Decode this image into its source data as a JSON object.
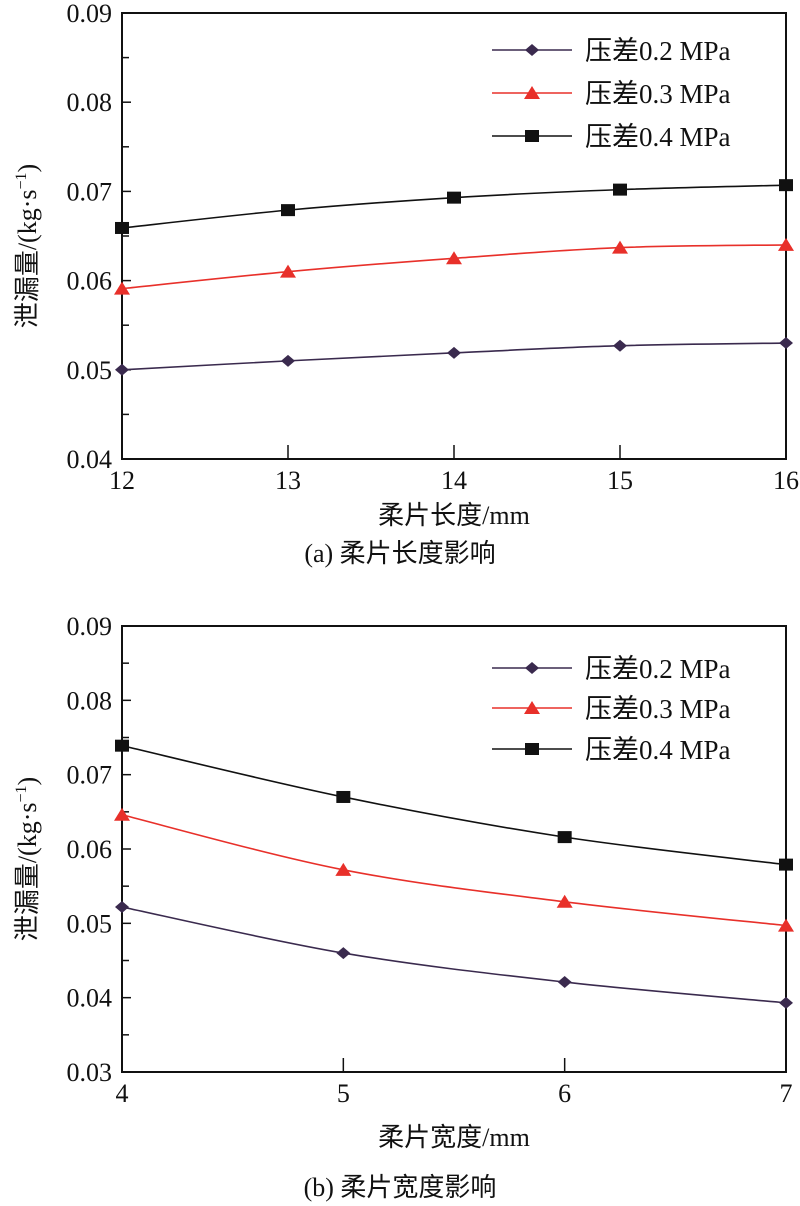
{
  "chart_data": [
    {
      "type": "line",
      "caption": "(a) 柔片长度影响",
      "xlabel": "柔片长度/mm",
      "ylabel": "泄漏量/(kg·s",
      "ylabel_sup": "−1",
      "ylabel_close": ")",
      "x": [
        12,
        13,
        14,
        15,
        16
      ],
      "xlim": [
        12,
        16
      ],
      "ylim": [
        0.04,
        0.09
      ],
      "xticks": [
        "12",
        "13",
        "14",
        "15",
        "16"
      ],
      "yticks": [
        "0.04",
        "0.05",
        "0.06",
        "0.07",
        "0.08",
        "0.09"
      ],
      "legend_position": "top-right",
      "grid": false,
      "series": [
        {
          "name": "压差0.2 MPa",
          "color": "#3a2a4e",
          "marker": "diamond",
          "values": [
            0.05,
            0.051,
            0.0519,
            0.0527,
            0.053
          ]
        },
        {
          "name": "压差0.3 MPa",
          "color": "#e8302a",
          "marker": "triangle",
          "values": [
            0.0591,
            0.061,
            0.0625,
            0.0637,
            0.064
          ]
        },
        {
          "name": "压差0.4 MPa",
          "color": "#111111",
          "marker": "square",
          "values": [
            0.0659,
            0.0679,
            0.0693,
            0.0702,
            0.0707
          ]
        }
      ]
    },
    {
      "type": "line",
      "caption": "(b) 柔片宽度影响",
      "xlabel": "柔片宽度/mm",
      "ylabel": "泄漏量/(kg·s",
      "ylabel_sup": "−1",
      "ylabel_close": ")",
      "x": [
        4,
        5,
        6,
        7
      ],
      "xlim": [
        4,
        7
      ],
      "ylim": [
        0.03,
        0.09
      ],
      "xticks": [
        "4",
        "5",
        "6",
        "7"
      ],
      "yticks": [
        "0.03",
        "0.04",
        "0.05",
        "0.06",
        "0.07",
        "0.08",
        "0.09"
      ],
      "legend_position": "top-right",
      "grid": false,
      "series": [
        {
          "name": "压差0.2 MPa",
          "color": "#3a2a4e",
          "marker": "diamond",
          "values": [
            0.0522,
            0.046,
            0.0421,
            0.0393
          ]
        },
        {
          "name": "压差0.3 MPa",
          "color": "#e8302a",
          "marker": "triangle",
          "values": [
            0.0646,
            0.0572,
            0.0529,
            0.0497
          ]
        },
        {
          "name": "压差0.4 MPa",
          "color": "#111111",
          "marker": "square",
          "values": [
            0.0739,
            0.067,
            0.0616,
            0.0579
          ]
        }
      ]
    }
  ]
}
